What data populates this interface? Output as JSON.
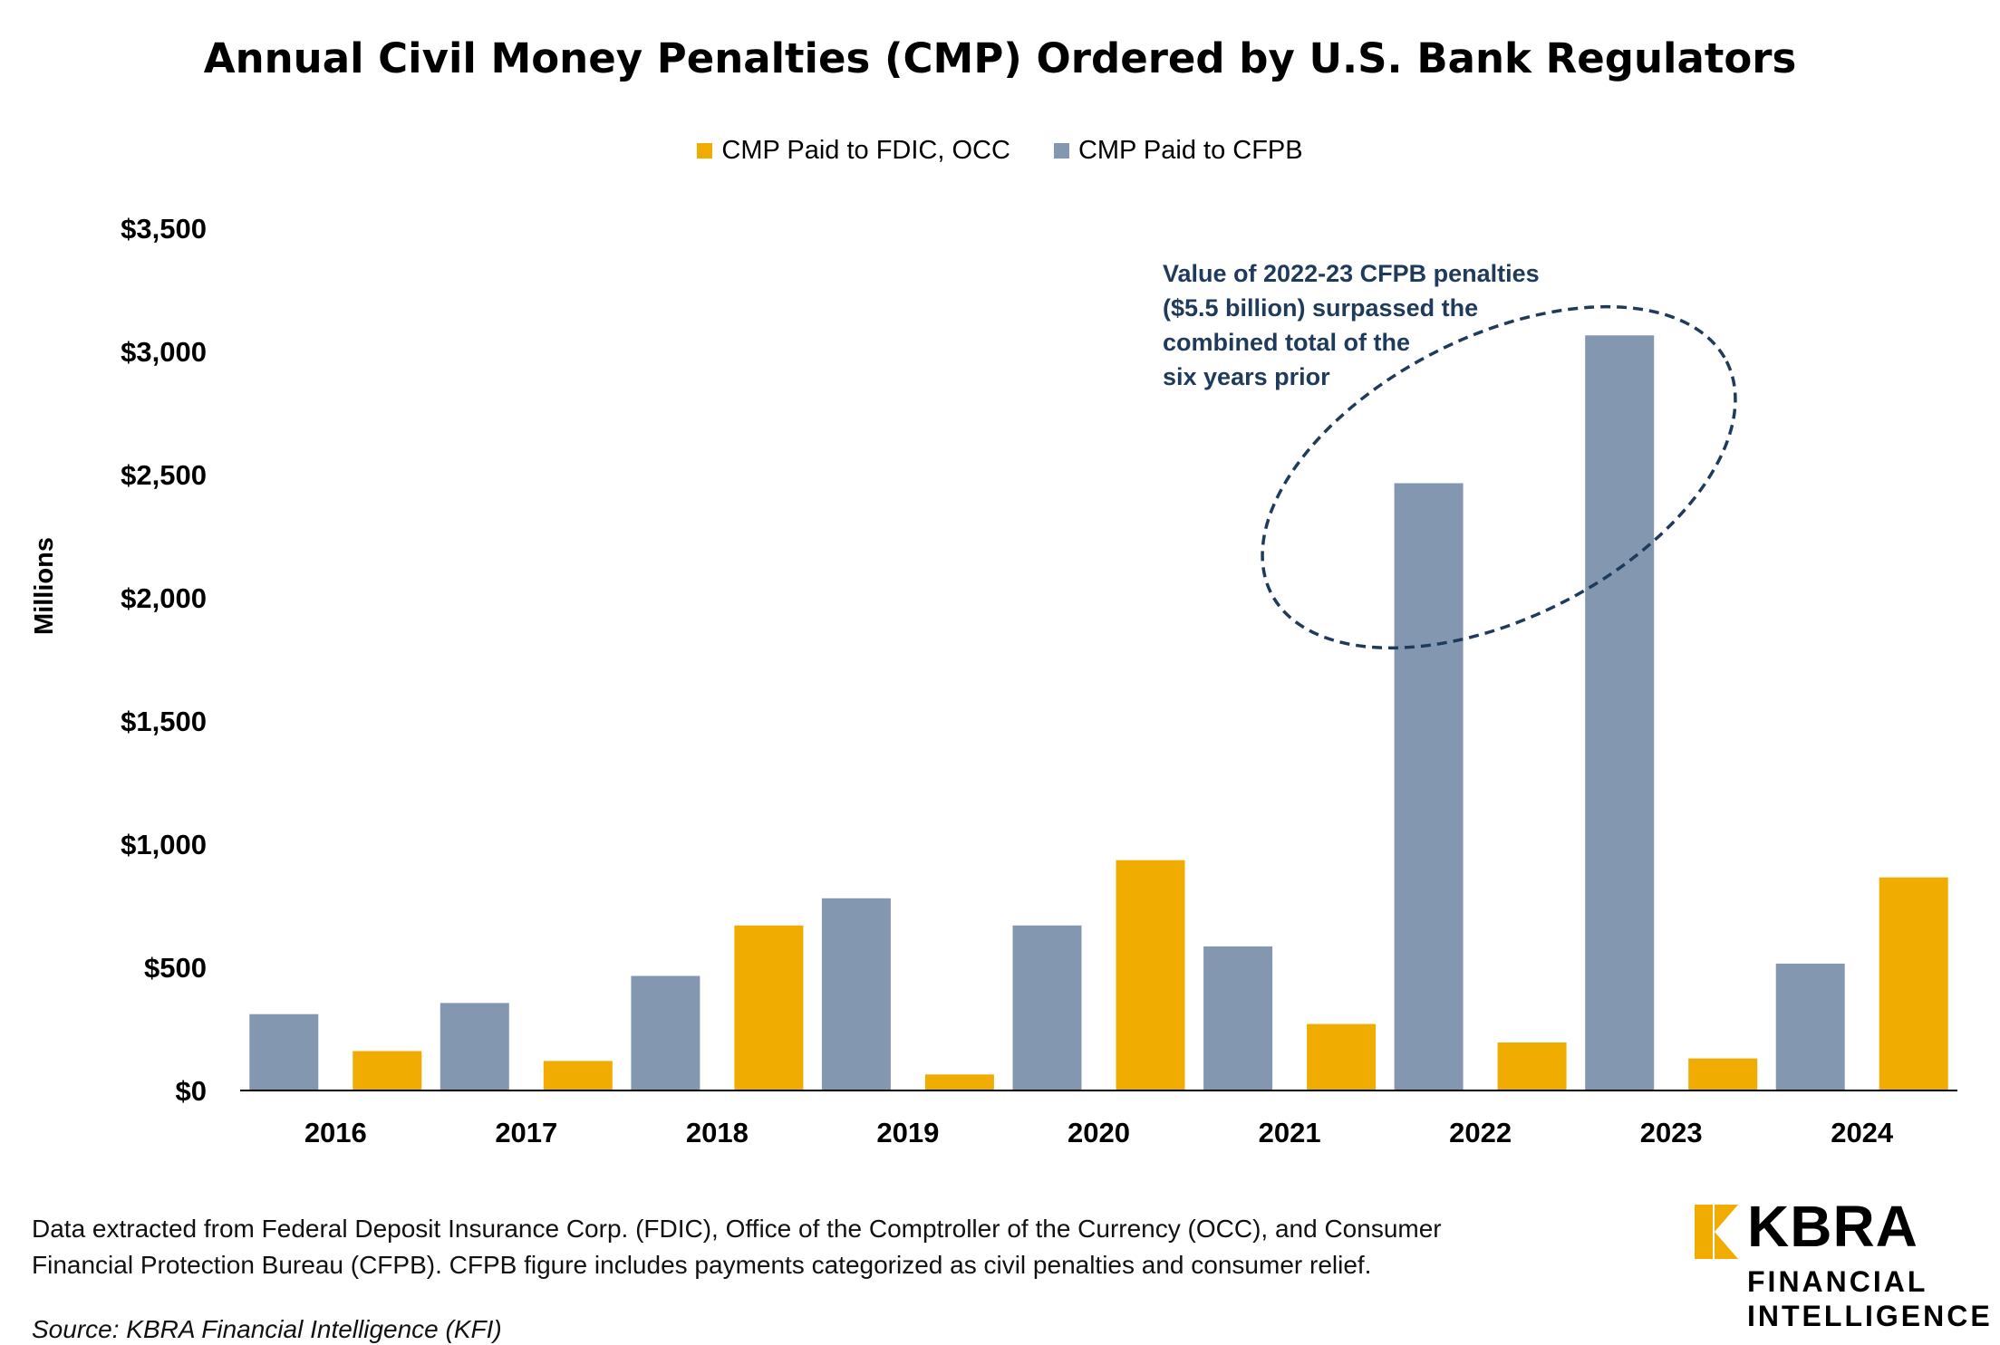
{
  "title": "Annual Civil Money Penalties (CMP) Ordered by U.S. Bank Regulators",
  "legend": [
    {
      "label": "CMP Paid to FDIC, OCC",
      "color": "#f0ac00"
    },
    {
      "label": "CMP Paid to CFPB",
      "color": "#8497b0"
    }
  ],
  "annotation": {
    "text_lines": [
      "Value of 2022-23 CFPB penalties",
      "($5.5 billion) surpassed the",
      "combined total of the",
      "six years prior"
    ],
    "color": "#1f3b5c"
  },
  "footnote": {
    "line1": "Data extracted from Federal Deposit Insurance Corp. (FDIC), Office of the Comptroller of the Currency (OCC), and Consumer",
    "line2": "Financial Protection Bureau (CFPB). CFPB figure includes payments categorized as civil penalties and consumer relief."
  },
  "source": "Source: KBRA Financial Intelligence (KFI)",
  "logo": {
    "name": "KBRA",
    "line1": "FINANCIAL",
    "line2": "INTELLIGENCE",
    "accent_color": "#f0ac00"
  },
  "chart_data": {
    "type": "bar",
    "ylabel": "Millions",
    "xlabel": "",
    "ylim": [
      0,
      3500
    ],
    "yticks": [
      0,
      500,
      1000,
      1500,
      2000,
      2500,
      3000,
      3500
    ],
    "ytick_labels": [
      "$0",
      "$500",
      "$1,000",
      "$1,500",
      "$2,000",
      "$2,500",
      "$3,000",
      "$3,500"
    ],
    "categories": [
      "2016",
      "2017",
      "2018",
      "2019",
      "2020",
      "2021",
      "2022",
      "2023",
      "2024"
    ],
    "series": [
      {
        "name": "CMP Paid to CFPB",
        "color": "#8497b0",
        "values": [
          310,
          355,
          465,
          780,
          670,
          585,
          2465,
          3065,
          515
        ]
      },
      {
        "name": "CMP Paid to FDIC, OCC",
        "color": "#f0ac00",
        "values": [
          160,
          120,
          670,
          65,
          935,
          270,
          195,
          130,
          865
        ]
      }
    ]
  }
}
